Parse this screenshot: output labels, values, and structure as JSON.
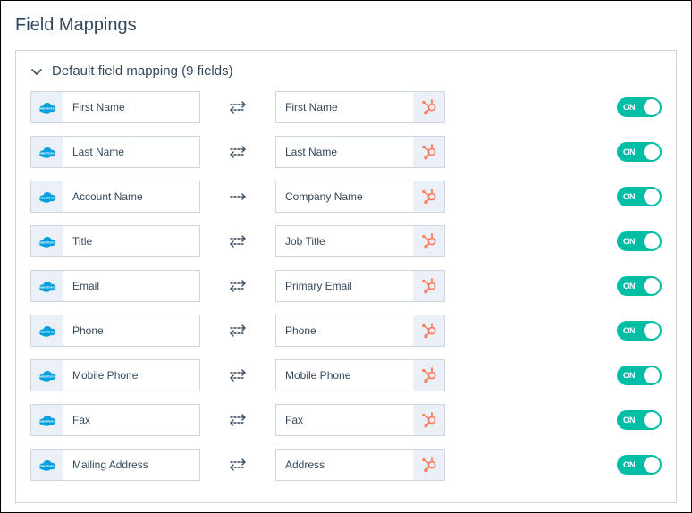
{
  "page_title": "Field Mappings",
  "section_title": "Default field mapping (9 fields)",
  "colors": {
    "salesforce": "#00a1e0",
    "hubspot": "#ff7a59",
    "toggle_on": "#00bda5",
    "border": "#cbd6e2",
    "icon_bg": "#eaf0f6",
    "text": "#33475b",
    "arrow": "#33475b"
  },
  "toggle_on_label": "ON",
  "mappings": [
    {
      "left": "First Name",
      "right": "First Name",
      "direction": "both",
      "enabled": true
    },
    {
      "left": "Last Name",
      "right": "Last Name",
      "direction": "both",
      "enabled": true
    },
    {
      "left": "Account Name",
      "right": "Company Name",
      "direction": "right",
      "enabled": true
    },
    {
      "left": "Title",
      "right": "Job Title",
      "direction": "both",
      "enabled": true
    },
    {
      "left": "Email",
      "right": "Primary Email",
      "direction": "both",
      "enabled": true
    },
    {
      "left": "Phone",
      "right": "Phone",
      "direction": "both",
      "enabled": true
    },
    {
      "left": "Mobile Phone",
      "right": "Mobile Phone",
      "direction": "both",
      "enabled": true
    },
    {
      "left": "Fax",
      "right": "Fax",
      "direction": "both",
      "enabled": true
    },
    {
      "left": "Mailing Address",
      "right": "Address",
      "direction": "both",
      "enabled": true
    }
  ]
}
